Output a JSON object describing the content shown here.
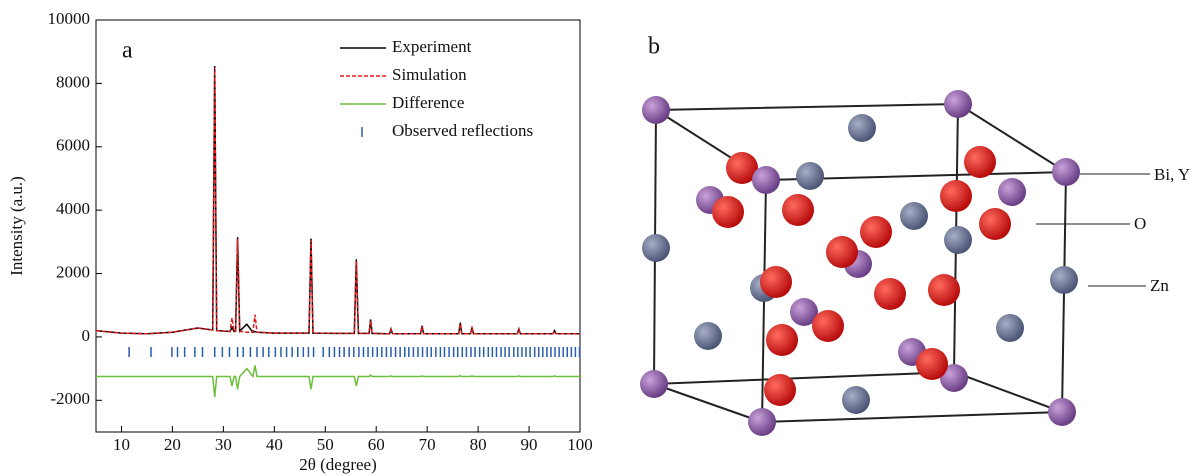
{
  "chart_data": {
    "type": "line",
    "panel_label": "a",
    "xlabel": "2θ (degree)",
    "ylabel": "Intensity (a.u.)",
    "xlim": [
      5,
      100
    ],
    "xticks": [
      10,
      20,
      30,
      40,
      50,
      60,
      70,
      80,
      90,
      100
    ],
    "ylim": [
      -3000,
      10000
    ],
    "yticks": [
      -2000,
      0,
      2000,
      4000,
      6000,
      8000,
      10000
    ],
    "legend": "upper right",
    "x": [
      5,
      10,
      15,
      20,
      25,
      27.9,
      28.3,
      28.7,
      31.3,
      31.7,
      32.1,
      32.4,
      32.8,
      33.2,
      34.6,
      35.8,
      36.2,
      36.6,
      40,
      46.8,
      47.2,
      47.6,
      52,
      55.7,
      56.1,
      56.5,
      58.6,
      58.9,
      59.2,
      62.6,
      62.9,
      63.2,
      68.7,
      69,
      69.3,
      76.2,
      76.5,
      76.8,
      78.5,
      78.8,
      79.1,
      87.7,
      88,
      88.3,
      94.7,
      95,
      95.3,
      100
    ],
    "series": [
      {
        "name": "Experiment",
        "color": "#000000",
        "values": [
          200,
          120,
          100,
          150,
          280,
          220,
          8550,
          200,
          170,
          300,
          170,
          180,
          3150,
          180,
          400,
          150,
          170,
          150,
          120,
          120,
          3100,
          120,
          110,
          110,
          2450,
          110,
          110,
          550,
          110,
          100,
          250,
          100,
          100,
          350,
          100,
          100,
          450,
          100,
          100,
          300,
          100,
          100,
          250,
          100,
          100,
          200,
          100,
          100
        ]
      },
      {
        "name": "Simulation",
        "color": "#e0191c",
        "dash": true,
        "values": [
          200,
          120,
          100,
          150,
          280,
          220,
          8500,
          200,
          170,
          600,
          170,
          180,
          3100,
          180,
          150,
          150,
          700,
          150,
          120,
          120,
          3050,
          120,
          110,
          110,
          2400,
          110,
          110,
          500,
          110,
          100,
          230,
          100,
          100,
          330,
          100,
          100,
          420,
          100,
          100,
          280,
          100,
          100,
          230,
          100,
          100,
          180,
          100,
          100
        ]
      },
      {
        "name": "Difference",
        "color": "#6cbf3c",
        "values": [
          -1250,
          -1250,
          -1250,
          -1250,
          -1250,
          -1250,
          -1900,
          -1250,
          -1250,
          -1550,
          -1250,
          -1250,
          -1650,
          -1250,
          -1000,
          -1250,
          -900,
          -1250,
          -1250,
          -1250,
          -1650,
          -1250,
          -1250,
          -1250,
          -1550,
          -1250,
          -1250,
          -1200,
          -1250,
          -1250,
          -1230,
          -1250,
          -1250,
          -1230,
          -1250,
          -1250,
          -1220,
          -1250,
          -1250,
          -1230,
          -1250,
          -1250,
          -1230,
          -1250,
          -1250,
          -1230,
          -1250,
          -1250
        ]
      },
      {
        "name": "Observed reflections",
        "color": "#2a5caa",
        "ticks": true,
        "x": [
          11.5,
          15.8,
          19.9,
          21.0,
          22.4,
          24.4,
          25.9,
          28.3,
          29.8,
          31.2,
          32.8,
          33.9,
          35.3,
          36.6,
          37.8,
          38.9,
          40.2,
          41.3,
          42.4,
          43.5,
          44.6,
          45.7,
          46.7,
          47.7,
          49.6,
          50.8,
          51.8,
          52.8,
          53.7,
          54.7,
          55.6,
          56.6,
          57.5,
          58.4,
          59.3,
          60.2,
          61.1,
          62.0,
          62.9,
          63.8,
          64.7,
          65.6,
          66.4,
          67.3,
          68.2,
          69.1,
          70.0,
          70.8,
          71.7,
          72.6,
          73.4,
          74.3,
          75.2,
          76.0,
          76.9,
          77.7,
          78.6,
          79.4,
          80.3,
          81.1,
          82.0,
          82.8,
          83.6,
          84.5,
          85.3,
          86.1,
          87.0,
          87.8,
          88.6,
          89.4,
          90.2,
          91.1,
          91.9,
          92.7,
          93.5,
          94.3,
          95.1,
          95.9,
          96.7,
          97.5,
          98.3,
          99.1,
          99.9
        ]
      }
    ]
  },
  "structure": {
    "panel_label": "b",
    "atom_labels": [
      "Bi, Y",
      "O",
      "Zn"
    ]
  }
}
